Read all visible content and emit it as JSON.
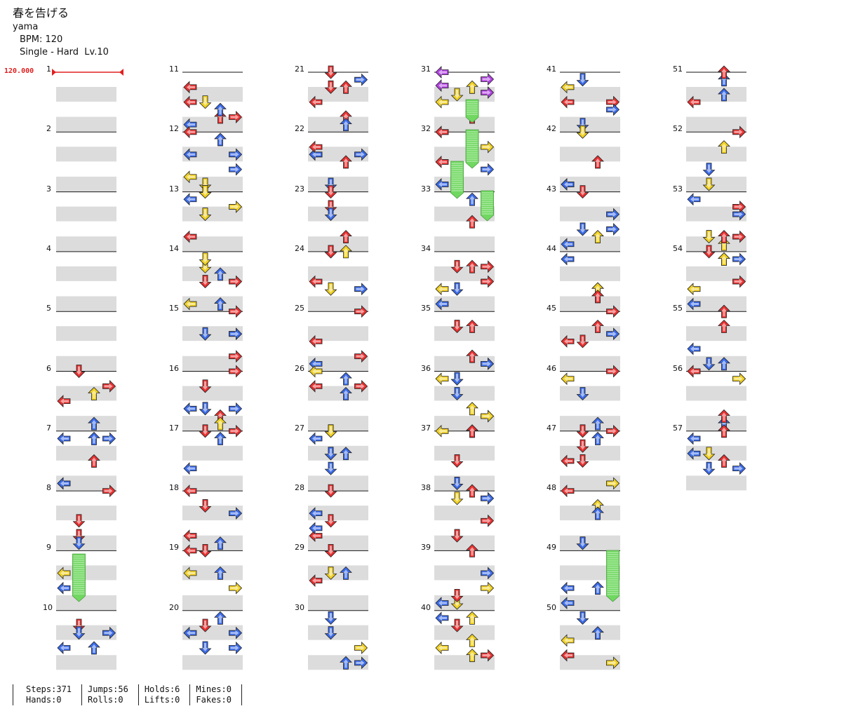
{
  "song": {
    "title": "春を告げる",
    "artist": "yama",
    "bpm": "BPM: 120",
    "chart": "Single - Hard  Lv.10"
  },
  "bpm_change": "120.000",
  "measures": [
    "1",
    "2",
    "3",
    "4",
    "5",
    "6",
    "7",
    "8",
    "9",
    "10",
    "11",
    "12",
    "13",
    "14",
    "15",
    "16",
    "17",
    "18",
    "19",
    "20",
    "21",
    "22",
    "23",
    "24",
    "25",
    "26",
    "27",
    "28",
    "29",
    "30",
    "31",
    "32",
    "33",
    "34",
    "35",
    "36",
    "37",
    "38",
    "39",
    "40",
    "41",
    "42",
    "43",
    "44",
    "45",
    "46",
    "47",
    "48",
    "49",
    "50",
    "51",
    "52",
    "53",
    "54",
    "55",
    "56",
    "57"
  ],
  "stats": [
    {
      "a": "Steps:371",
      "b": "Hands:0"
    },
    {
      "a": "Jumps:56",
      "b": "Rolls:0"
    },
    {
      "a": "Holds:6",
      "b": "Lifts:0"
    },
    {
      "a": "Mines:0",
      "b": "Fakes:0"
    }
  ],
  "colors": {
    "quarter": "#e83030",
    "eighth": "#3a6ae8",
    "sixteenth": "#f0d020",
    "twentyfourth": "#b040e0",
    "hold": "#70d860",
    "band": "#dcdcdc",
    "bpm": "#e02020"
  }
}
